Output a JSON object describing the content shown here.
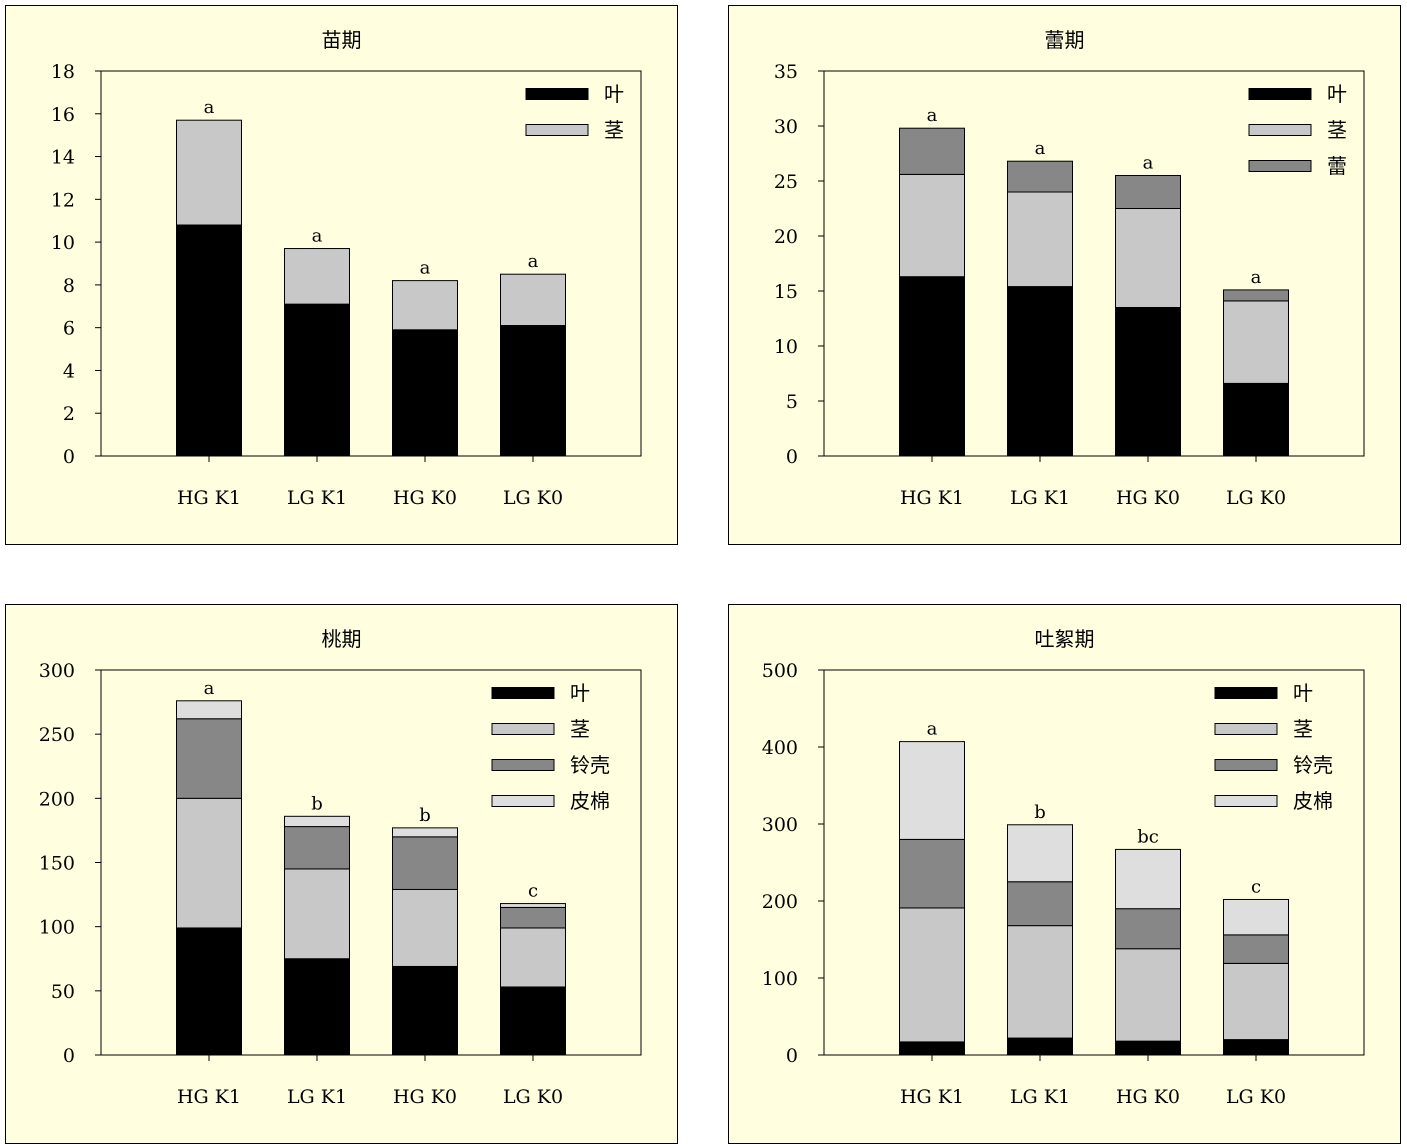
{
  "colors": {
    "leaf": "#000000",
    "stem": "#c8c8c8",
    "bud": "#878787",
    "shell": "#878787",
    "lint": "#dedede",
    "panel_bg": "#ffffe0"
  },
  "chart_data": [
    {
      "type": "bar",
      "stacked": true,
      "title": "苗期",
      "categories": [
        "HG K1",
        "LG K1",
        "HG K0",
        "LG K0"
      ],
      "ylim": [
        0,
        18
      ],
      "yticks": [
        "0",
        "2",
        "4",
        "6",
        "8",
        "10",
        "12",
        "14",
        "16",
        "18"
      ],
      "series": [
        {
          "name": "叶",
          "color": "#000000",
          "values": [
            10.8,
            7.1,
            5.9,
            6.1
          ]
        },
        {
          "name": "茎",
          "color": "#c8c8c8",
          "values": [
            4.9,
            2.6,
            2.3,
            2.4
          ]
        }
      ],
      "annotations": [
        "a",
        "a",
        "a",
        "a"
      ],
      "legend": "top-right",
      "grid": false
    },
    {
      "type": "bar",
      "stacked": true,
      "title": "蕾期",
      "categories": [
        "HG K1",
        "LG K1",
        "HG K0",
        "LG K0"
      ],
      "ylim": [
        0,
        35
      ],
      "yticks": [
        "0",
        "5",
        "10",
        "15",
        "20",
        "25",
        "30",
        "35"
      ],
      "series": [
        {
          "name": "叶",
          "color": "#000000",
          "values": [
            16.3,
            15.4,
            13.5,
            6.6
          ]
        },
        {
          "name": "茎",
          "color": "#c8c8c8",
          "values": [
            9.3,
            8.6,
            9.0,
            7.5
          ]
        },
        {
          "name": "蕾",
          "color": "#878787",
          "values": [
            4.2,
            2.8,
            3.0,
            1.0
          ]
        }
      ],
      "annotations": [
        "a",
        "a",
        "a",
        "a"
      ],
      "legend": "top-right",
      "grid": false
    },
    {
      "type": "bar",
      "stacked": true,
      "title": "桃期",
      "categories": [
        "HG K1",
        "LG K1",
        "HG K0",
        "LG K0"
      ],
      "ylim": [
        0,
        300
      ],
      "yticks": [
        "0",
        "50",
        "100",
        "150",
        "200",
        "250",
        "300"
      ],
      "series": [
        {
          "name": "叶",
          "color": "#000000",
          "values": [
            99,
            75,
            69,
            53
          ]
        },
        {
          "name": "茎",
          "color": "#c8c8c8",
          "values": [
            101,
            70,
            60,
            46
          ]
        },
        {
          "name": "铃壳",
          "color": "#878787",
          "values": [
            62,
            33,
            41,
            16
          ]
        },
        {
          "name": "皮棉",
          "color": "#dedede",
          "values": [
            14,
            8,
            7,
            3
          ]
        }
      ],
      "annotations": [
        "a",
        "b",
        "b",
        "c"
      ],
      "legend": "top-right",
      "grid": false
    },
    {
      "type": "bar",
      "stacked": true,
      "title": "吐絮期",
      "categories": [
        "HG K1",
        "LG K1",
        "HG K0",
        "LG K0"
      ],
      "ylim": [
        0,
        500
      ],
      "yticks": [
        "0",
        "100",
        "200",
        "300",
        "400",
        "500"
      ],
      "series": [
        {
          "name": "叶",
          "color": "#000000",
          "values": [
            17,
            22,
            18,
            20
          ]
        },
        {
          "name": "茎",
          "color": "#c8c8c8",
          "values": [
            174,
            146,
            120,
            99
          ]
        },
        {
          "name": "铃壳",
          "color": "#878787",
          "values": [
            89,
            57,
            52,
            37
          ]
        },
        {
          "name": "皮棉",
          "color": "#dedede",
          "values": [
            127,
            74,
            77,
            46
          ]
        }
      ],
      "annotations": [
        "a",
        "b",
        "bc",
        "c"
      ],
      "legend": "top-right",
      "grid": false
    }
  ]
}
